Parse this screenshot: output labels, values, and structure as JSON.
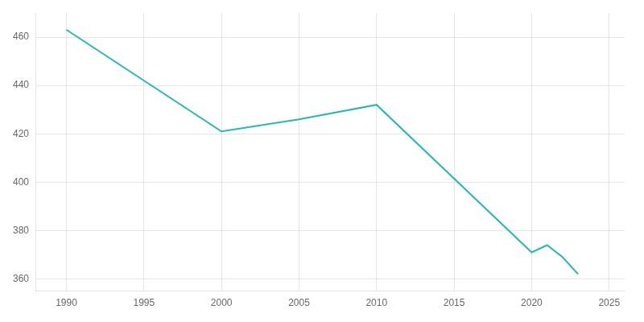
{
  "chart_data": {
    "type": "line",
    "x": [
      1990,
      2000,
      2005,
      2010,
      2020,
      2021,
      2022,
      2023
    ],
    "values": [
      463,
      421,
      426,
      432,
      371,
      374,
      369,
      362
    ],
    "color": "#2ab5b5",
    "xlim": [
      1988,
      2026
    ],
    "ylim": [
      355,
      470
    ],
    "xticks": [
      1990,
      1995,
      2000,
      2005,
      2010,
      2015,
      2020,
      2025
    ],
    "yticks": [
      360,
      380,
      400,
      420,
      440,
      460
    ],
    "grid": true
  }
}
